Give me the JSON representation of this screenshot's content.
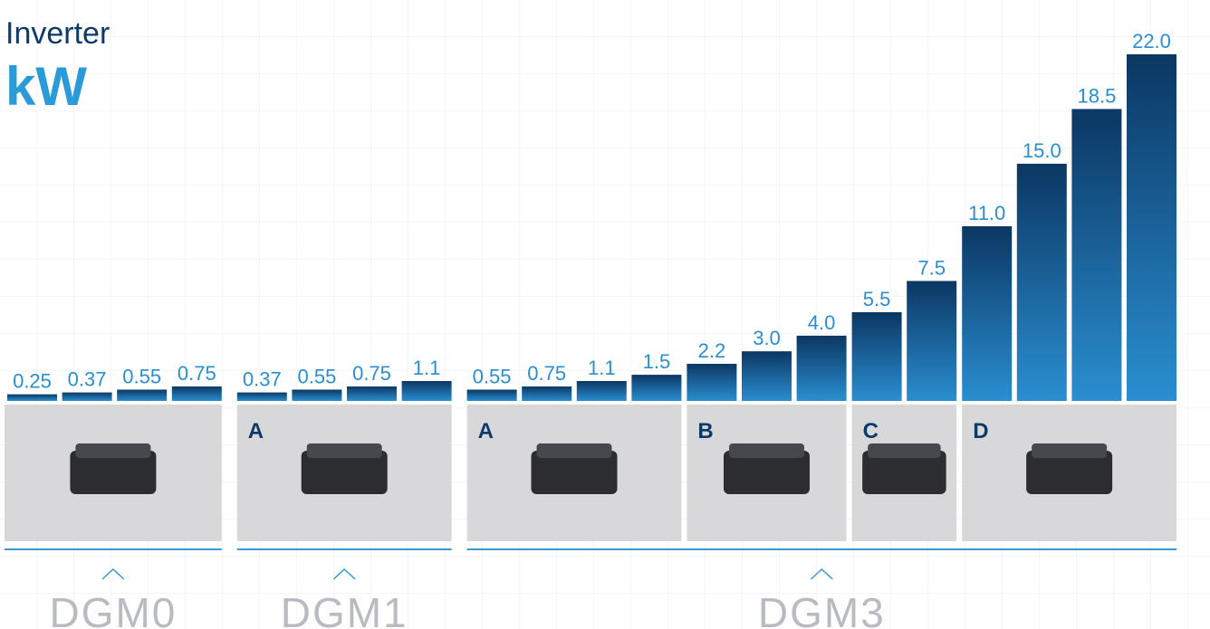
{
  "chart_data": {
    "type": "bar",
    "title": "Inverter",
    "unit": "kW",
    "ylim": [
      0,
      22
    ],
    "groups": [
      {
        "name": "DGM0",
        "sections": [
          {
            "values": [
              0.25,
              0.37,
              0.55,
              0.75
            ]
          }
        ]
      },
      {
        "name": "DGM1",
        "sections": [
          {
            "label": "A",
            "values": [
              0.37,
              0.55,
              0.75,
              1.1
            ]
          }
        ]
      },
      {
        "name": "DGM3",
        "sections": [
          {
            "label": "A",
            "values": [
              0.55,
              0.75,
              1.1,
              1.5
            ]
          },
          {
            "label": "B",
            "values": [
              2.2,
              3,
              4
            ],
            "value_labels": [
              "2.2",
              "3.0",
              "4.0"
            ]
          },
          {
            "label": "C",
            "values": [
              5.5,
              7.5
            ]
          },
          {
            "label": "D",
            "values": [
              11,
              15,
              18.5,
              22
            ],
            "value_labels": [
              "11.0",
              "15.0",
              "18.5",
              "22.0"
            ]
          }
        ]
      }
    ]
  }
}
